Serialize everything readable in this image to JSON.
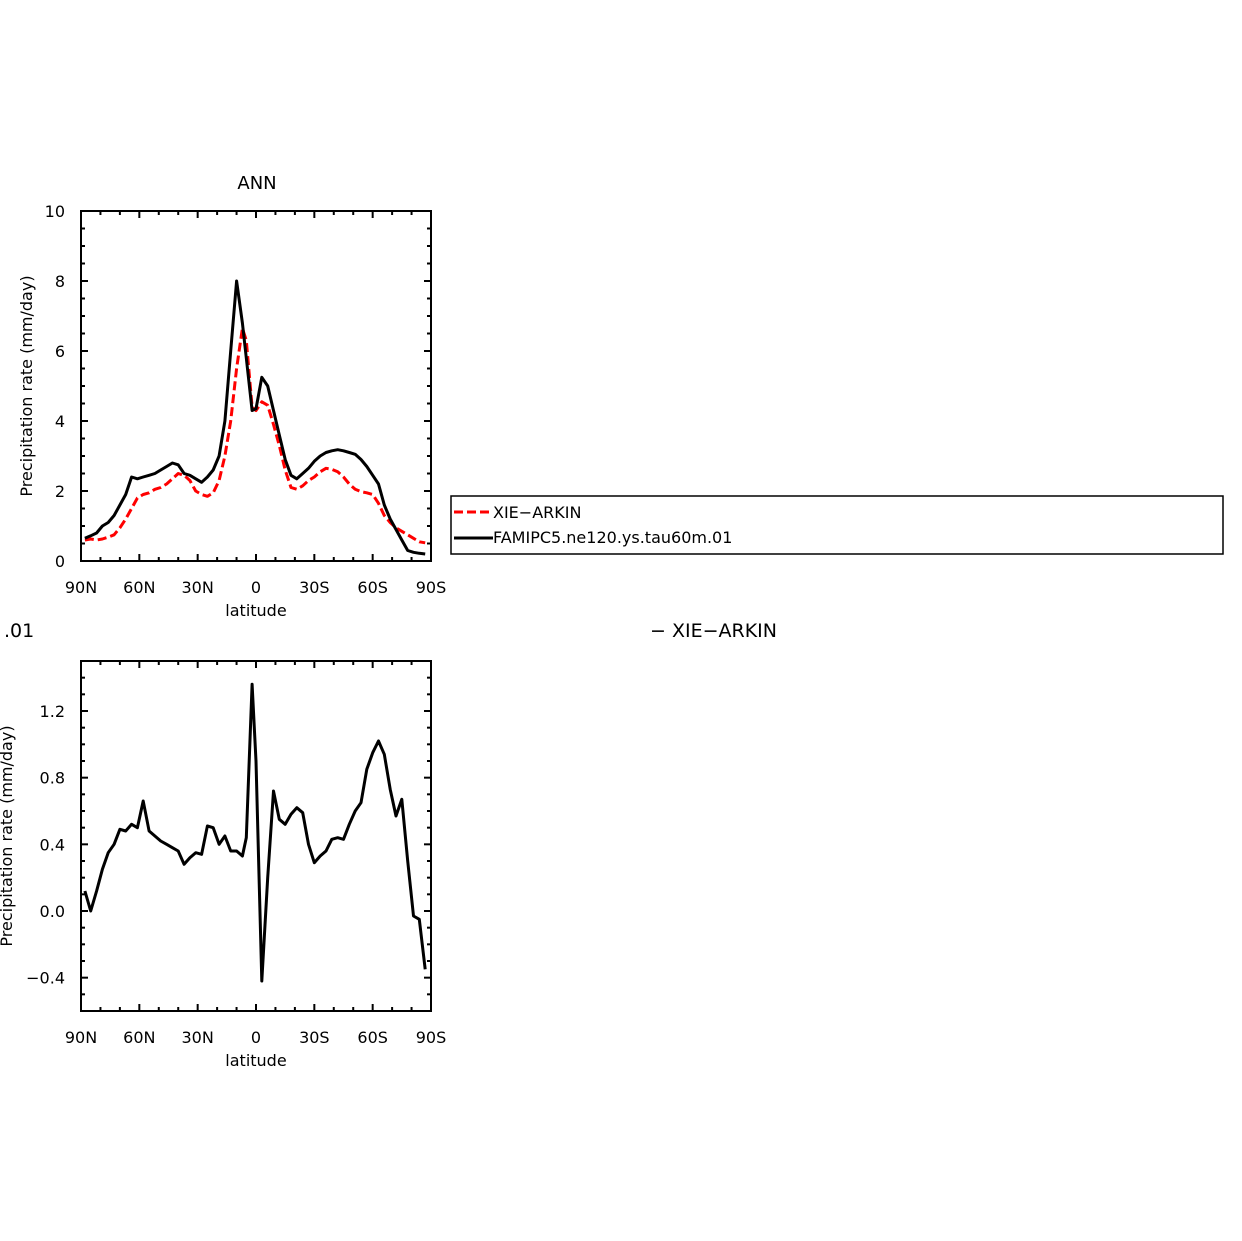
{
  "chart_data": [
    {
      "type": "line",
      "title": "ANN",
      "xlabel": "latitude",
      "ylabel": "Precipitation rate (mm/day)",
      "xlim": [
        90,
        -90
      ],
      "ylim": [
        0,
        10
      ],
      "xticks": [
        90,
        60,
        30,
        0,
        -30,
        -60,
        -90
      ],
      "xtick_labels": [
        "90N",
        "60N",
        "30N",
        "0",
        "30S",
        "60S",
        "90S"
      ],
      "yticks": [
        0,
        2,
        4,
        6,
        8,
        10
      ],
      "ytick_labels": [
        "0",
        "2",
        "4",
        "6",
        "8",
        "10"
      ],
      "grid": false,
      "legend": {
        "placement": "right, outside plot",
        "entries": [
          "XIE−ARKIN",
          "FAMIPC5.ne120.ys.tau60m.01"
        ]
      },
      "series": [
        {
          "name": "XIE−ARKIN",
          "color": "#ff0000",
          "dash": true,
          "points": [
            [
              88,
              0.6
            ],
            [
              85,
              0.63
            ],
            [
              82,
              0.6
            ],
            [
              79,
              0.63
            ],
            [
              76,
              0.68
            ],
            [
              73,
              0.75
            ],
            [
              70,
              0.95
            ],
            [
              67,
              1.2
            ],
            [
              64,
              1.5
            ],
            [
              61,
              1.8
            ],
            [
              58,
              1.9
            ],
            [
              55,
              1.95
            ],
            [
              52,
              2.05
            ],
            [
              49,
              2.1
            ],
            [
              46,
              2.2
            ],
            [
              43,
              2.35
            ],
            [
              40,
              2.5
            ],
            [
              37,
              2.45
            ],
            [
              34,
              2.3
            ],
            [
              31,
              2.0
            ],
            [
              28,
              1.9
            ],
            [
              25,
              1.85
            ],
            [
              22,
              1.95
            ],
            [
              19,
              2.3
            ],
            [
              16,
              3.0
            ],
            [
              13,
              4.0
            ],
            [
              10,
              5.5
            ],
            [
              7,
              6.65
            ],
            [
              5,
              6.3
            ],
            [
              2,
              4.4
            ],
            [
              0,
              4.3
            ],
            [
              -3,
              4.55
            ],
            [
              -6,
              4.45
            ],
            [
              -9,
              3.9
            ],
            [
              -12,
              3.3
            ],
            [
              -15,
              2.6
            ],
            [
              -18,
              2.1
            ],
            [
              -21,
              2.05
            ],
            [
              -24,
              2.15
            ],
            [
              -27,
              2.3
            ],
            [
              -30,
              2.4
            ],
            [
              -33,
              2.55
            ],
            [
              -36,
              2.65
            ],
            [
              -39,
              2.62
            ],
            [
              -42,
              2.55
            ],
            [
              -45,
              2.4
            ],
            [
              -48,
              2.2
            ],
            [
              -51,
              2.05
            ],
            [
              -54,
              1.98
            ],
            [
              -57,
              1.95
            ],
            [
              -60,
              1.9
            ],
            [
              -63,
              1.65
            ],
            [
              -66,
              1.3
            ],
            [
              -69,
              1.1
            ],
            [
              -72,
              0.95
            ],
            [
              -75,
              0.85
            ],
            [
              -78,
              0.75
            ],
            [
              -81,
              0.65
            ],
            [
              -84,
              0.55
            ],
            [
              -87,
              0.52
            ]
          ]
        },
        {
          "name": "FAMIPC5.ne120.ys.tau60m.01",
          "color": "#000000",
          "dash": false,
          "points": [
            [
              88,
              0.65
            ],
            [
              85,
              0.72
            ],
            [
              82,
              0.8
            ],
            [
              79,
              1.0
            ],
            [
              76,
              1.1
            ],
            [
              73,
              1.3
            ],
            [
              70,
              1.6
            ],
            [
              67,
              1.9
            ],
            [
              64,
              2.4
            ],
            [
              61,
              2.35
            ],
            [
              58,
              2.4
            ],
            [
              55,
              2.45
            ],
            [
              52,
              2.5
            ],
            [
              49,
              2.6
            ],
            [
              46,
              2.7
            ],
            [
              43,
              2.8
            ],
            [
              40,
              2.75
            ],
            [
              37,
              2.5
            ],
            [
              34,
              2.45
            ],
            [
              31,
              2.35
            ],
            [
              28,
              2.25
            ],
            [
              25,
              2.4
            ],
            [
              22,
              2.6
            ],
            [
              19,
              3.0
            ],
            [
              16,
              4.0
            ],
            [
              13,
              6.0
            ],
            [
              10,
              8.0
            ],
            [
              7,
              6.8
            ],
            [
              5,
              5.8
            ],
            [
              2,
              4.3
            ],
            [
              0,
              4.35
            ],
            [
              -3,
              5.25
            ],
            [
              -6,
              5.0
            ],
            [
              -9,
              4.3
            ],
            [
              -12,
              3.6
            ],
            [
              -15,
              2.9
            ],
            [
              -18,
              2.45
            ],
            [
              -21,
              2.35
            ],
            [
              -24,
              2.5
            ],
            [
              -27,
              2.65
            ],
            [
              -30,
              2.85
            ],
            [
              -33,
              3.0
            ],
            [
              -36,
              3.1
            ],
            [
              -39,
              3.15
            ],
            [
              -42,
              3.18
            ],
            [
              -45,
              3.15
            ],
            [
              -48,
              3.1
            ],
            [
              -51,
              3.05
            ],
            [
              -54,
              2.9
            ],
            [
              -57,
              2.7
            ],
            [
              -60,
              2.45
            ],
            [
              -63,
              2.2
            ],
            [
              -66,
              1.6
            ],
            [
              -69,
              1.2
            ],
            [
              -72,
              0.9
            ],
            [
              -75,
              0.6
            ],
            [
              -78,
              0.3
            ],
            [
              -81,
              0.25
            ],
            [
              -84,
              0.22
            ],
            [
              -87,
              0.2
            ]
          ]
        }
      ]
    },
    {
      "type": "line",
      "title": "",
      "title_fragment_left": ".01",
      "title_fragment_right": "− XIE−ARKIN",
      "xlabel": "latitude",
      "ylabel": "Precipitation rate (mm/day)",
      "xlim": [
        90,
        -90
      ],
      "ylim": [
        -0.6,
        1.5
      ],
      "xticks": [
        90,
        60,
        30,
        0,
        -30,
        -60,
        -90
      ],
      "xtick_labels": [
        "90N",
        "60N",
        "30N",
        "0",
        "30S",
        "60S",
        "90S"
      ],
      "yticks": [
        -0.4,
        0.0,
        0.4,
        0.8,
        1.2
      ],
      "ytick_labels": [
        "−0.4",
        "0.0",
        "0.4",
        "0.8",
        "1.2"
      ],
      "grid": false,
      "series": [
        {
          "color": "#000000",
          "dash": false,
          "points": [
            [
              88,
              0.12
            ],
            [
              85,
              0.0
            ],
            [
              82,
              0.12
            ],
            [
              79,
              0.25
            ],
            [
              76,
              0.35
            ],
            [
              73,
              0.4
            ],
            [
              70,
              0.49
            ],
            [
              67,
              0.48
            ],
            [
              64,
              0.52
            ],
            [
              61,
              0.5
            ],
            [
              58,
              0.66
            ],
            [
              55,
              0.48
            ],
            [
              52,
              0.45
            ],
            [
              49,
              0.42
            ],
            [
              46,
              0.4
            ],
            [
              43,
              0.38
            ],
            [
              40,
              0.36
            ],
            [
              37,
              0.28
            ],
            [
              34,
              0.32
            ],
            [
              31,
              0.35
            ],
            [
              28,
              0.34
            ],
            [
              25,
              0.51
            ],
            [
              22,
              0.5
            ],
            [
              19,
              0.4
            ],
            [
              16,
              0.45
            ],
            [
              13,
              0.36
            ],
            [
              10,
              0.36
            ],
            [
              7,
              0.33
            ],
            [
              5,
              0.44
            ],
            [
              2,
              1.36
            ],
            [
              0,
              0.9
            ],
            [
              -3,
              -0.42
            ],
            [
              -6,
              0.2
            ],
            [
              -9,
              0.72
            ],
            [
              -12,
              0.55
            ],
            [
              -15,
              0.52
            ],
            [
              -18,
              0.58
            ],
            [
              -21,
              0.62
            ],
            [
              -24,
              0.59
            ],
            [
              -27,
              0.4
            ],
            [
              -30,
              0.29
            ],
            [
              -33,
              0.33
            ],
            [
              -36,
              0.36
            ],
            [
              -39,
              0.43
            ],
            [
              -42,
              0.44
            ],
            [
              -45,
              0.43
            ],
            [
              -48,
              0.52
            ],
            [
              -51,
              0.6
            ],
            [
              -54,
              0.65
            ],
            [
              -57,
              0.85
            ],
            [
              -60,
              0.95
            ],
            [
              -63,
              1.02
            ],
            [
              -66,
              0.94
            ],
            [
              -69,
              0.73
            ],
            [
              -72,
              0.57
            ],
            [
              -75,
              0.67
            ],
            [
              -78,
              0.3
            ],
            [
              -81,
              -0.03
            ],
            [
              -84,
              -0.05
            ],
            [
              -87,
              -0.35
            ]
          ]
        }
      ]
    }
  ]
}
